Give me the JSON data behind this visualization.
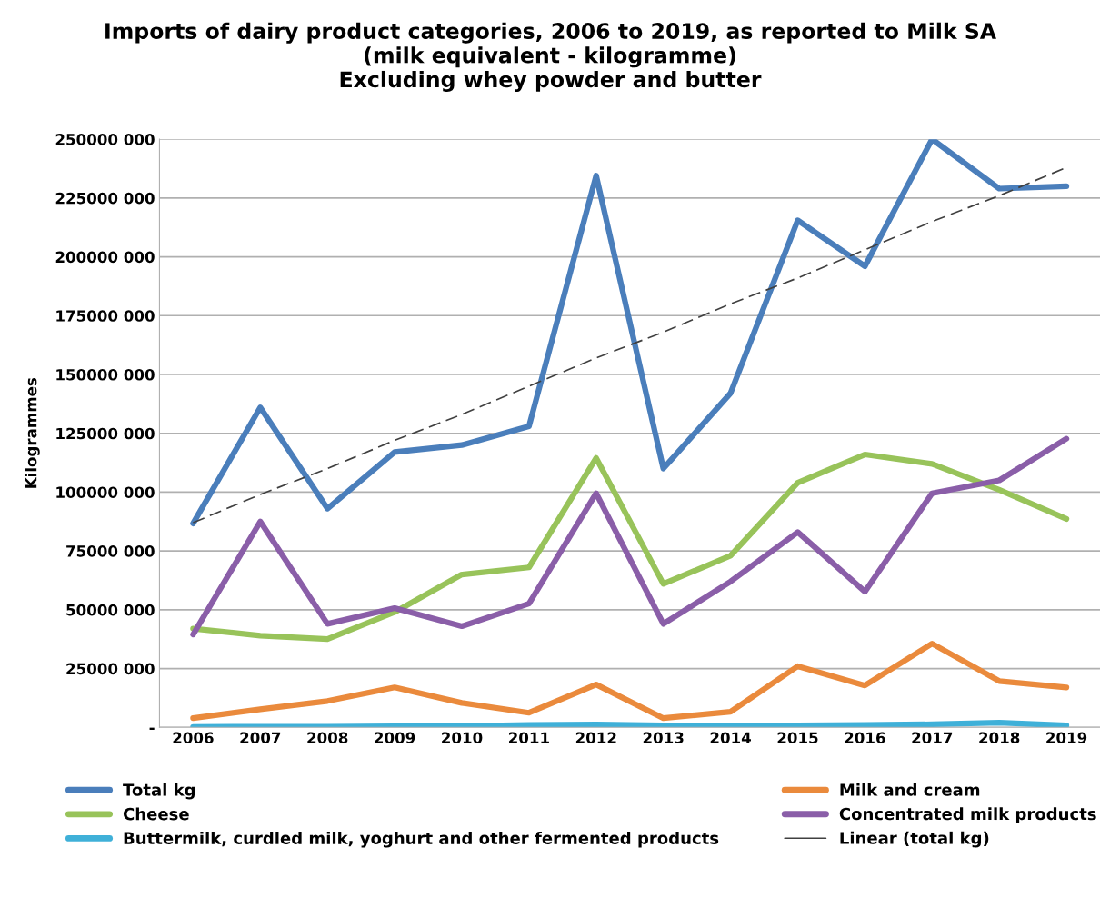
{
  "chart_data": {
    "type": "line",
    "title": "Imports of dairy product categories, 2006 to 2019, as reported to Milk SA\n(milk equivalent - kilogramme)\nExcluding whey powder and butter",
    "ylabel": "Kilogrammes",
    "categories": [
      "2006",
      "2007",
      "2008",
      "2009",
      "2010",
      "2011",
      "2012",
      "2013",
      "2014",
      "2015",
      "2016",
      "2017",
      "2018",
      "2019"
    ],
    "series": [
      {
        "name": "Total kg",
        "color": "#4a7ebb",
        "values": [
          86700000,
          136000000,
          93000000,
          117000000,
          120000000,
          128000000,
          234500000,
          110000000,
          142000000,
          215500000,
          196000000,
          250000000,
          229000000,
          230000000
        ]
      },
      {
        "name": "Milk and cream",
        "color": "#ea8a3c",
        "values": [
          3900000,
          7700000,
          11200000,
          17000000,
          10400000,
          6200000,
          18200000,
          3900000,
          6600000,
          26000000,
          17800000,
          35600000,
          19700000,
          17000000
        ]
      },
      {
        "name": "Cheese",
        "color": "#98c35a",
        "values": [
          42000000,
          39000000,
          37500000,
          49000000,
          65000000,
          68000000,
          114500000,
          61000000,
          73000000,
          104000000,
          116000000,
          112000000,
          101000000,
          88600000
        ]
      },
      {
        "name": "Concentrated milk products",
        "color": "#8a5ea8",
        "values": [
          39500000,
          87500000,
          44000000,
          50700000,
          43000000,
          52600000,
          99500000,
          44000000,
          62000000,
          83000000,
          57700000,
          99500000,
          105000000,
          122700000
        ]
      },
      {
        "name": "Buttermilk, curdled milk, yoghurt and other fermented products",
        "color": "#3fb0d8",
        "values": [
          200000,
          300000,
          300000,
          400000,
          500000,
          1000000,
          1200000,
          800000,
          700000,
          800000,
          1000000,
          1300000,
          2000000,
          800000
        ]
      },
      {
        "name": "Linear (total kg)",
        "color": "#404040",
        "line_style": "dashed",
        "values": [
          87000000,
          99000000,
          110000000,
          122000000,
          133000000,
          145000000,
          157000000,
          168000000,
          180000000,
          191000000,
          203000000,
          215000000,
          226000000,
          238000000
        ]
      }
    ],
    "ylim": [
      0,
      250000000
    ],
    "yticks": [
      {
        "value": 0,
        "label": "-"
      },
      {
        "value": 25000000,
        "label": "25000 000"
      },
      {
        "value": 50000000,
        "label": "50000 000"
      },
      {
        "value": 75000000,
        "label": "75000 000"
      },
      {
        "value": 100000000,
        "label": "100000 000"
      },
      {
        "value": 125000000,
        "label": "125000 000"
      },
      {
        "value": 150000000,
        "label": "150000 000"
      },
      {
        "value": 175000000,
        "label": "175000 000"
      },
      {
        "value": 200000000,
        "label": "200000 000"
      },
      {
        "value": 225000000,
        "label": "225000 000"
      },
      {
        "value": 250000000,
        "label": "250000 000"
      }
    ],
    "grid": "y",
    "legend": "bottom",
    "line_style": "solid",
    "marker": "none"
  }
}
